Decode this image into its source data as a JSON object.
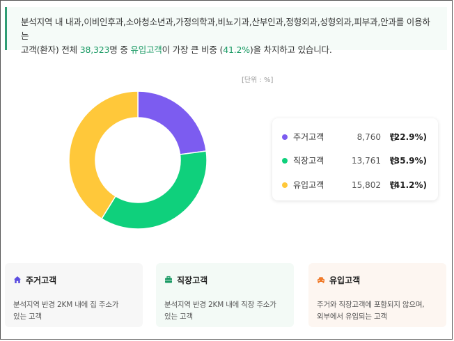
{
  "summary": {
    "line1": "분석지역 내 내과,이비인후과,소아청소년과,가정의학과,비뇨기과,산부인과,정형외과,성형외과,피부과,안과를 이용하는",
    "line2_pre": "고객(환자) 전체 ",
    "total": "38,323",
    "line2_mid": "명 중 ",
    "highlight": "유입고객",
    "line2_mid2": "이 가장 큰 비중 (",
    "highlight_pct": "41.2%",
    "line2_post": ")을 차지하고 있습니다."
  },
  "unit_label": "[단위 : %]",
  "chart_data": {
    "type": "pie",
    "variant": "donut",
    "categories": [
      "주거고객",
      "직장고객",
      "유입고객"
    ],
    "values": [
      22.9,
      35.9,
      41.2
    ],
    "counts": [
      "8,760",
      "13,761",
      "15,802"
    ],
    "colors": [
      "#7c5cf0",
      "#0fd07c",
      "#ffc83a"
    ],
    "unit": "%"
  },
  "legend": {
    "unit_word": "명",
    "rows": [
      {
        "name": "주거고객",
        "count": "8,760",
        "pct": "(22.9%)",
        "color": "#7c5cf0"
      },
      {
        "name": "직장고객",
        "count": "13,761",
        "pct": "(35.9%)",
        "color": "#0fd07c"
      },
      {
        "name": "유입고객",
        "count": "15,802",
        "pct": "(41.2%)",
        "color": "#ffc83a"
      }
    ]
  },
  "cards": [
    {
      "title": "주거고객",
      "desc1": "분석지역 반경 2KM 내에 집 주소가",
      "desc2": "있는 고객",
      "icon": "home-icon",
      "icon_color": "#5b4de0"
    },
    {
      "title": "직장고객",
      "desc1": "분석지역 반경 2KM 내에 직장 주소가",
      "desc2": "있는 고객",
      "icon": "briefcase-icon",
      "icon_color": "#1a9a64"
    },
    {
      "title": "유입고객",
      "desc1": "주거와 직장고객에 포함되지 않으며,",
      "desc2": "외부에서 유입되는 고객",
      "icon": "car-icon",
      "icon_color": "#f07a2a"
    }
  ]
}
